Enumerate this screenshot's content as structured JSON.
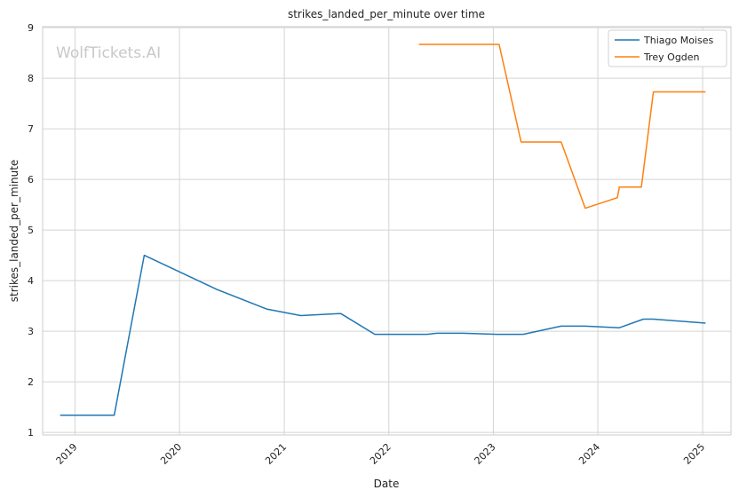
{
  "chart_data": {
    "type": "line",
    "title": "strikes_landed_per_minute over time",
    "xlabel": "Date",
    "ylabel": "strikes_landed_per_minute",
    "watermark": "WolfTickets.AI",
    "xlim": [
      "2018-09-10",
      "2025-04-10"
    ],
    "ylim": [
      0.95,
      9.02
    ],
    "grid": true,
    "legend": "top-right",
    "x_ticks": [
      "2019-01-01",
      "2020-01-01",
      "2021-01-01",
      "2022-01-01",
      "2023-01-01",
      "2024-01-01",
      "2025-01-01"
    ],
    "x_tick_labels": [
      "2019",
      "2020",
      "2021",
      "2022",
      "2023",
      "2024",
      "2025"
    ],
    "y_ticks": [
      1,
      2,
      3,
      4,
      5,
      6,
      7,
      8,
      9
    ],
    "y_tick_labels": [
      "1",
      "2",
      "3",
      "4",
      "5",
      "6",
      "7",
      "8",
      "9"
    ],
    "series": [
      {
        "name": "Thiago Moises",
        "color": "#1f77b4",
        "points": [
          [
            "2018-11-10",
            1.34
          ],
          [
            "2019-05-18",
            1.34
          ],
          [
            "2019-08-31",
            4.5
          ],
          [
            "2020-05-13",
            3.82
          ],
          [
            "2020-10-31",
            3.44
          ],
          [
            "2021-02-27",
            3.31
          ],
          [
            "2021-07-17",
            3.35
          ],
          [
            "2021-11-13",
            2.94
          ],
          [
            "2022-05-14",
            2.94
          ],
          [
            "2022-06-18",
            2.96
          ],
          [
            "2022-09-17",
            2.96
          ],
          [
            "2023-01-14",
            2.94
          ],
          [
            "2023-04-15",
            2.94
          ],
          [
            "2023-08-26",
            3.1
          ],
          [
            "2023-11-18",
            3.1
          ],
          [
            "2024-03-16",
            3.07
          ],
          [
            "2024-06-08",
            3.24
          ],
          [
            "2024-07-13",
            3.24
          ],
          [
            "2025-01-11",
            3.16
          ]
        ]
      },
      {
        "name": "Trey Ogden",
        "color": "#ff7f0e",
        "points": [
          [
            "2022-04-16",
            8.67
          ],
          [
            "2023-01-21",
            8.67
          ],
          [
            "2023-04-08",
            6.74
          ],
          [
            "2023-08-26",
            6.74
          ],
          [
            "2023-11-18",
            5.43
          ],
          [
            "2024-03-09",
            5.64
          ],
          [
            "2024-03-16",
            5.85
          ],
          [
            "2024-06-01",
            5.85
          ],
          [
            "2024-07-13",
            7.73
          ],
          [
            "2025-01-11",
            7.73
          ]
        ]
      }
    ]
  }
}
